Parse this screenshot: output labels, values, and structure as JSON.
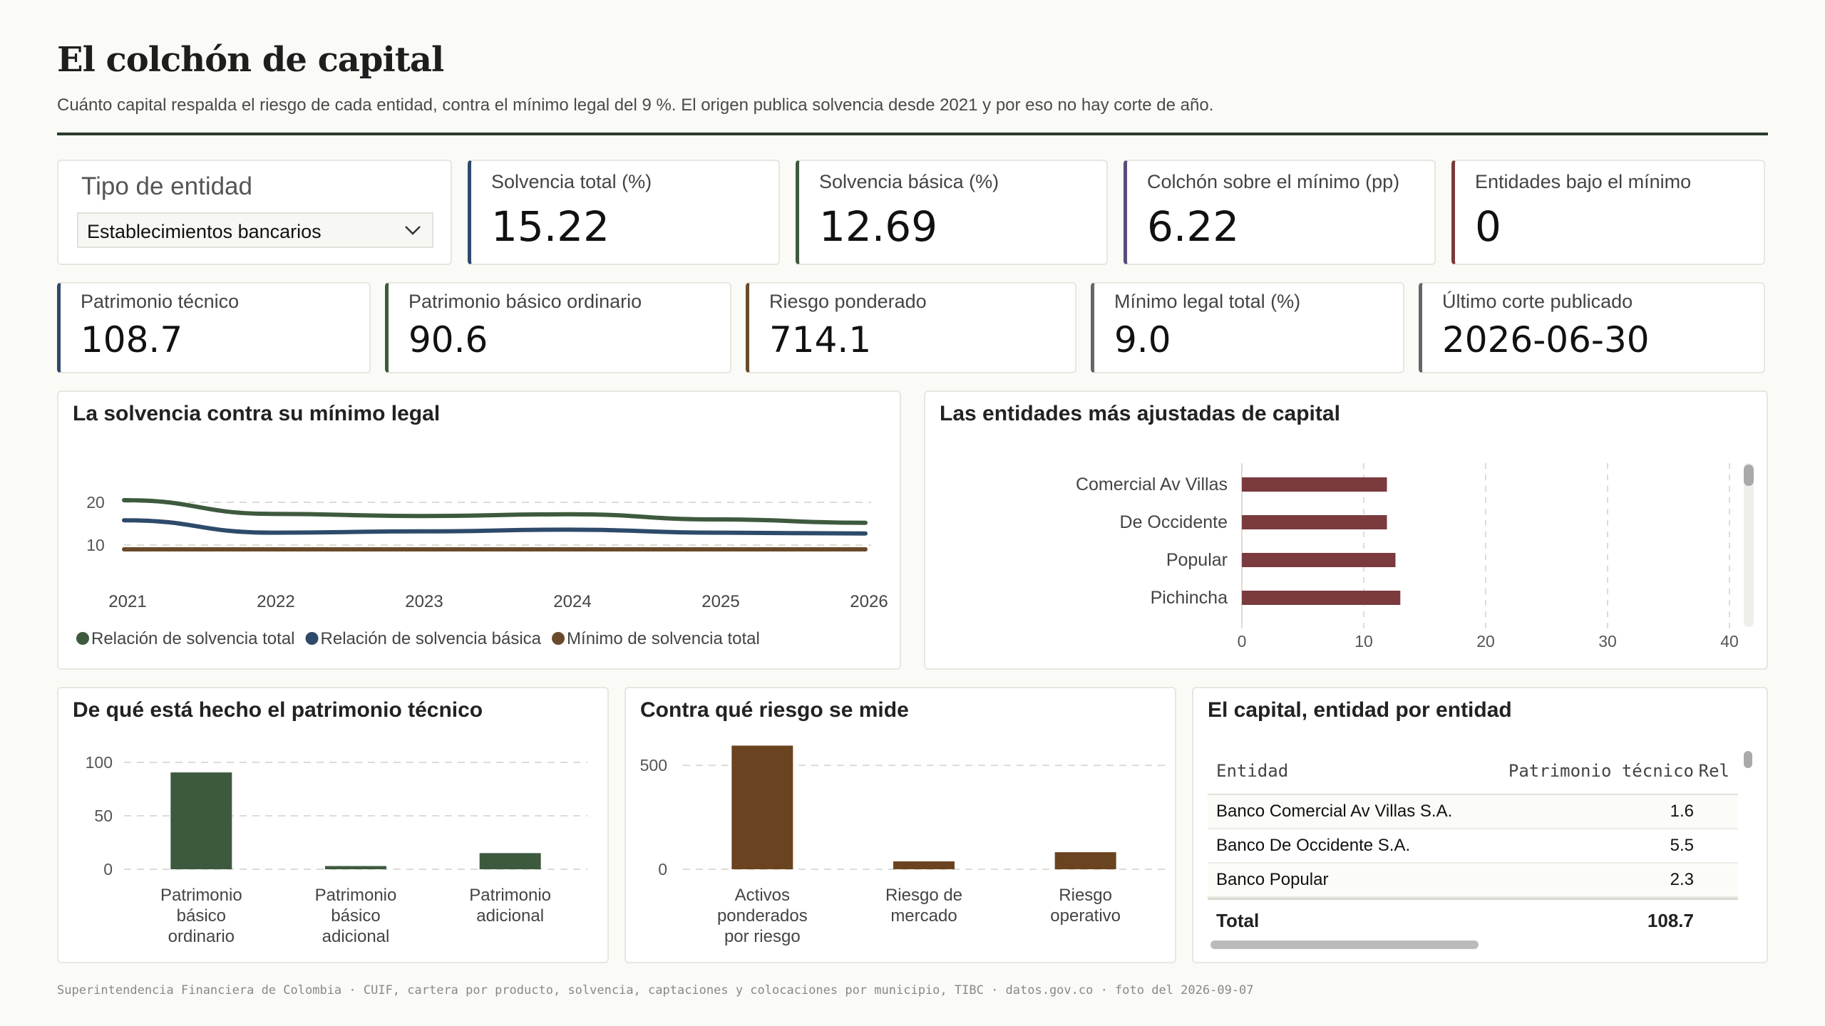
{
  "header": {
    "title": "El colchón de capital",
    "subtitle": "Cuánto capital respalda el riesgo de cada entidad, contra el mínimo legal del 9 %. El origen publica solvencia desde 2021 y por eso no hay corte de año."
  },
  "filter": {
    "label": "Tipo de entidad",
    "selected": "Establecimientos bancarios"
  },
  "kpis_row1": [
    {
      "label": "Solvencia total (%)",
      "value": "15.22",
      "accent": "#2e4a6b"
    },
    {
      "label": "Solvencia básica (%)",
      "value": "12.69",
      "accent": "#3e5a3e"
    },
    {
      "label": "Colchón sobre el mínimo (pp)",
      "value": "6.22",
      "accent": "#5a4a7a"
    },
    {
      "label": "Entidades bajo el mínimo",
      "value": "0",
      "accent": "#7a3a3a"
    }
  ],
  "kpis_row2": [
    {
      "label": "Patrimonio técnico",
      "value": "108.7",
      "accent": "#2e4a6b"
    },
    {
      "label": "Patrimonio básico ordinario",
      "value": "90.6",
      "accent": "#3e5a3e"
    },
    {
      "label": "Riesgo ponderado",
      "value": "714.1",
      "accent": "#6a4a2a"
    },
    {
      "label": "Mínimo legal total (%)",
      "value": "9.0",
      "accent": "#666666"
    },
    {
      "label": "Último corte publicado",
      "value": "2026-06-30",
      "accent": "#666666"
    }
  ],
  "panels": {
    "solvency": "La solvencia contra su mínimo legal",
    "tightest": "Las entidades más ajustadas de capital",
    "composition": "De qué está hecho el patrimonio técnico",
    "risk": "Contra qué riesgo se mide",
    "table": "El capital, entidad por entidad"
  },
  "chart_data": [
    {
      "type": "line",
      "x": [
        2021,
        2022,
        2023,
        2024,
        2025,
        2026
      ],
      "ylim": [
        5,
        25
      ],
      "yticks": [
        10,
        20
      ],
      "series": [
        {
          "name": "Relación de solvencia total",
          "color": "#3e5a3e",
          "values": [
            20.5,
            17.3,
            16.8,
            17.2,
            16.0,
            15.2
          ]
        },
        {
          "name": "Relación de solvencia básica",
          "color": "#2e4a6b",
          "values": [
            15.8,
            12.9,
            13.2,
            13.6,
            12.9,
            12.7
          ]
        },
        {
          "name": "Mínimo de solvencia total",
          "color": "#6a4a2a",
          "values": [
            9,
            9,
            9,
            9,
            9,
            9
          ]
        }
      ]
    },
    {
      "type": "bar",
      "orientation": "horizontal",
      "categories": [
        "Comercial Av Villas",
        "De Occidente",
        "Popular",
        "Pichincha"
      ],
      "values": [
        11.9,
        11.9,
        12.6,
        13.0
      ],
      "xlim": [
        0,
        40
      ],
      "xticks": [
        0,
        10,
        20,
        30,
        40
      ],
      "color": "#7a3a3e"
    },
    {
      "type": "bar",
      "categories": [
        "Patrimonio básico ordinario",
        "Patrimonio básico adicional",
        "Patrimonio adicional"
      ],
      "values": [
        90.6,
        3.0,
        15.1
      ],
      "ylim": [
        0,
        100
      ],
      "yticks": [
        0,
        50,
        100
      ],
      "color": "#3e5a3e"
    },
    {
      "type": "bar",
      "categories": [
        "Activos ponderados por riesgo",
        "Riesgo de mercado",
        "Riesgo operativo"
      ],
      "values": [
        595,
        38,
        82
      ],
      "ylim": [
        0,
        600
      ],
      "yticks": [
        0,
        500
      ],
      "color": "#6a4420"
    }
  ],
  "table": {
    "headers": [
      "Entidad",
      "Patrimonio técnico",
      "Rel"
    ],
    "rows": [
      {
        "entidad": "Banco Comercial Av Villas S.A.",
        "patrimonio": "1.6"
      },
      {
        "entidad": "Banco De Occidente S.A.",
        "patrimonio": "5.5"
      },
      {
        "entidad": "Banco Popular",
        "patrimonio": "2.3"
      }
    ],
    "total_label": "Total",
    "total_value": "108.7"
  },
  "footer": "Superintendencia Financiera de Colombia · CUIF, cartera por producto, solvencia, captaciones y colocaciones por municipio, TIBC · datos.gov.co   ·   foto del 2026-09-07"
}
